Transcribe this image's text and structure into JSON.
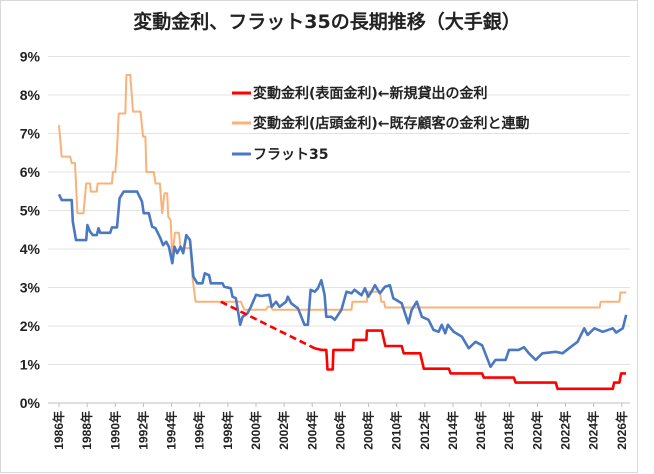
{
  "chart_data": {
    "type": "line",
    "title": "変動金利、フラット35の長期推移（大手銀）",
    "xlabel": "",
    "ylabel": "",
    "xlim": [
      1985.9,
      2026.4
    ],
    "ylim": [
      0,
      9
    ],
    "grid": true,
    "legend_placement": "top-center",
    "y_ticks": [
      "0%",
      "1%",
      "2%",
      "3%",
      "4%",
      "5%",
      "6%",
      "7%",
      "8%",
      "9%"
    ],
    "x_ticks": [
      "1986年",
      "1988年",
      "1990年",
      "1992年",
      "1994年",
      "1996年",
      "1998年",
      "2000年",
      "2002年",
      "2004年",
      "2006年",
      "2008年",
      "2010年",
      "2012年",
      "2014年",
      "2016年",
      "2018年",
      "2020年",
      "2022年",
      "2024年",
      "2026年"
    ],
    "series": [
      {
        "name": "変動金利(表面金利)←新規貸出の金利",
        "color": "#ff0000",
        "dashed_segment": [
          [
            1997.5,
            2.63
          ],
          [
            2004.17,
            1.42
          ]
        ],
        "points": [
          [
            2004.17,
            1.42
          ],
          [
            2004.64,
            1.38
          ],
          [
            2005.0,
            1.38
          ],
          [
            2005.08,
            0.87
          ],
          [
            2005.45,
            0.87
          ],
          [
            2005.5,
            1.38
          ],
          [
            2006.9,
            1.38
          ],
          [
            2006.93,
            1.64
          ],
          [
            2007.85,
            1.64
          ],
          [
            2007.88,
            1.88
          ],
          [
            2008.95,
            1.88
          ],
          [
            2009.19,
            1.48
          ],
          [
            2010.36,
            1.48
          ],
          [
            2010.5,
            1.29
          ],
          [
            2011.67,
            1.29
          ],
          [
            2011.93,
            0.89
          ],
          [
            2013.71,
            0.89
          ],
          [
            2013.83,
            0.77
          ],
          [
            2016.07,
            0.77
          ],
          [
            2016.19,
            0.66
          ],
          [
            2018.33,
            0.66
          ],
          [
            2018.45,
            0.53
          ],
          [
            2021.31,
            0.53
          ],
          [
            2021.43,
            0.37
          ],
          [
            2025.36,
            0.37
          ],
          [
            2025.45,
            0.53
          ],
          [
            2025.83,
            0.53
          ],
          [
            2025.95,
            0.77
          ],
          [
            2026.3,
            0.77
          ]
        ]
      },
      {
        "name": "変動金利(店頭金利)←既存顧客の金利と連動",
        "color": "#f8b27a",
        "points": [
          [
            1986.0,
            7.22
          ],
          [
            1986.19,
            6.4
          ],
          [
            1986.79,
            6.4
          ],
          [
            1986.9,
            6.23
          ],
          [
            1987.14,
            6.23
          ],
          [
            1987.31,
            4.93
          ],
          [
            1987.74,
            4.93
          ],
          [
            1987.93,
            5.7
          ],
          [
            1988.21,
            5.7
          ],
          [
            1988.26,
            5.49
          ],
          [
            1988.69,
            5.49
          ],
          [
            1988.74,
            5.7
          ],
          [
            1989.76,
            5.7
          ],
          [
            1989.83,
            6.0
          ],
          [
            1990.0,
            6.0
          ],
          [
            1990.12,
            6.57
          ],
          [
            1990.24,
            7.52
          ],
          [
            1990.71,
            7.52
          ],
          [
            1990.79,
            8.52
          ],
          [
            1991.07,
            8.52
          ],
          [
            1991.26,
            7.57
          ],
          [
            1991.79,
            7.57
          ],
          [
            1991.98,
            6.92
          ],
          [
            1992.14,
            6.92
          ],
          [
            1992.21,
            6.0
          ],
          [
            1992.74,
            6.0
          ],
          [
            1992.86,
            5.7
          ],
          [
            1993.17,
            5.7
          ],
          [
            1993.33,
            4.93
          ],
          [
            1993.5,
            5.45
          ],
          [
            1993.69,
            5.45
          ],
          [
            1993.76,
            4.84
          ],
          [
            1993.93,
            4.75
          ],
          [
            1994.05,
            3.8
          ],
          [
            1994.24,
            4.42
          ],
          [
            1994.52,
            4.42
          ],
          [
            1994.64,
            4.02
          ],
          [
            1995.36,
            4.02
          ],
          [
            1995.48,
            3.28
          ],
          [
            1995.71,
            2.63
          ],
          [
            1998.93,
            2.63
          ],
          [
            1999.17,
            2.42
          ],
          [
            2000.71,
            2.42
          ],
          [
            2000.83,
            2.5
          ],
          [
            2001.07,
            2.5
          ],
          [
            2001.19,
            2.42
          ],
          [
            2006.79,
            2.42
          ],
          [
            2006.85,
            2.63
          ],
          [
            2007.88,
            2.63
          ],
          [
            2007.95,
            2.89
          ],
          [
            2008.81,
            2.89
          ],
          [
            2008.9,
            2.63
          ],
          [
            2009.1,
            2.63
          ],
          [
            2009.19,
            2.48
          ],
          [
            2024.43,
            2.48
          ],
          [
            2024.5,
            2.63
          ],
          [
            2025.83,
            2.63
          ],
          [
            2025.9,
            2.87
          ],
          [
            2026.31,
            2.87
          ]
        ]
      },
      {
        "name": "フラット35",
        "color": "#4a78c2",
        "points": [
          [
            1986.0,
            5.42
          ],
          [
            1986.19,
            5.27
          ],
          [
            1986.9,
            5.27
          ],
          [
            1986.98,
            4.71
          ],
          [
            1987.21,
            4.23
          ],
          [
            1987.93,
            4.23
          ],
          [
            1988.02,
            4.62
          ],
          [
            1988.21,
            4.45
          ],
          [
            1988.4,
            4.36
          ],
          [
            1988.69,
            4.36
          ],
          [
            1988.81,
            4.54
          ],
          [
            1988.93,
            4.42
          ],
          [
            1989.64,
            4.42
          ],
          [
            1989.76,
            4.56
          ],
          [
            1990.12,
            4.56
          ],
          [
            1990.31,
            5.32
          ],
          [
            1990.6,
            5.49
          ],
          [
            1991.55,
            5.49
          ],
          [
            1991.9,
            5.23
          ],
          [
            1992.02,
            4.93
          ],
          [
            1992.38,
            4.93
          ],
          [
            1992.62,
            4.58
          ],
          [
            1992.86,
            4.54
          ],
          [
            1993.21,
            4.28
          ],
          [
            1993.4,
            4.1
          ],
          [
            1993.62,
            4.19
          ],
          [
            1993.81,
            4.06
          ],
          [
            1994.05,
            3.63
          ],
          [
            1994.21,
            4.06
          ],
          [
            1994.4,
            3.89
          ],
          [
            1994.64,
            4.06
          ],
          [
            1994.83,
            3.89
          ],
          [
            1995.05,
            4.36
          ],
          [
            1995.31,
            4.23
          ],
          [
            1995.55,
            3.28
          ],
          [
            1995.83,
            3.11
          ],
          [
            1996.19,
            3.11
          ],
          [
            1996.36,
            3.37
          ],
          [
            1996.67,
            3.32
          ],
          [
            1996.79,
            3.11
          ],
          [
            1997.62,
            3.11
          ],
          [
            1997.74,
            3.02
          ],
          [
            1998.21,
            2.98
          ],
          [
            1998.33,
            2.76
          ],
          [
            1998.57,
            2.72
          ],
          [
            1998.88,
            2.03
          ],
          [
            1999.05,
            2.24
          ],
          [
            1999.4,
            2.33
          ],
          [
            1999.64,
            2.5
          ],
          [
            2000.0,
            2.81
          ],
          [
            2000.36,
            2.78
          ],
          [
            2000.95,
            2.81
          ],
          [
            2001.12,
            2.5
          ],
          [
            2001.43,
            2.63
          ],
          [
            2001.67,
            2.5
          ],
          [
            2002.14,
            2.63
          ],
          [
            2002.26,
            2.76
          ],
          [
            2002.5,
            2.59
          ],
          [
            2002.98,
            2.46
          ],
          [
            2003.45,
            2.03
          ],
          [
            2003.69,
            2.03
          ],
          [
            2003.88,
            2.94
          ],
          [
            2004.17,
            2.89
          ],
          [
            2004.4,
            2.98
          ],
          [
            2004.64,
            3.19
          ],
          [
            2004.88,
            2.81
          ],
          [
            2005.0,
            2.24
          ],
          [
            2005.36,
            2.24
          ],
          [
            2005.6,
            2.16
          ],
          [
            2006.07,
            2.42
          ],
          [
            2006.43,
            2.89
          ],
          [
            2006.79,
            2.85
          ],
          [
            2007.0,
            2.94
          ],
          [
            2007.5,
            2.8
          ],
          [
            2007.74,
            2.98
          ],
          [
            2007.98,
            2.76
          ],
          [
            2008.21,
            2.89
          ],
          [
            2008.45,
            3.06
          ],
          [
            2008.81,
            2.85
          ],
          [
            2009.17,
            3.02
          ],
          [
            2009.52,
            3.06
          ],
          [
            2009.76,
            2.72
          ],
          [
            2010.36,
            2.59
          ],
          [
            2010.83,
            2.07
          ],
          [
            2011.07,
            2.42
          ],
          [
            2011.43,
            2.63
          ],
          [
            2011.79,
            2.24
          ],
          [
            2012.26,
            2.16
          ],
          [
            2012.62,
            1.9
          ],
          [
            2012.98,
            1.85
          ],
          [
            2013.21,
            2.03
          ],
          [
            2013.45,
            1.81
          ],
          [
            2013.64,
            2.03
          ],
          [
            2014.05,
            1.85
          ],
          [
            2014.64,
            1.72
          ],
          [
            2015.12,
            1.42
          ],
          [
            2015.6,
            1.59
          ],
          [
            2016.07,
            1.5
          ],
          [
            2016.43,
            1.16
          ],
          [
            2016.67,
            0.94
          ],
          [
            2017.02,
            1.12
          ],
          [
            2017.74,
            1.12
          ],
          [
            2017.98,
            1.38
          ],
          [
            2018.69,
            1.38
          ],
          [
            2019.05,
            1.45
          ],
          [
            2019.4,
            1.29
          ],
          [
            2019.88,
            1.12
          ],
          [
            2020.36,
            1.29
          ],
          [
            2021.31,
            1.33
          ],
          [
            2021.79,
            1.29
          ],
          [
            2022.38,
            1.46
          ],
          [
            2022.86,
            1.59
          ],
          [
            2023.33,
            1.94
          ],
          [
            2023.57,
            1.77
          ],
          [
            2024.05,
            1.94
          ],
          [
            2024.64,
            1.85
          ],
          [
            2025.36,
            1.94
          ],
          [
            2025.6,
            1.83
          ],
          [
            2026.07,
            1.94
          ],
          [
            2026.31,
            2.29
          ]
        ]
      }
    ]
  }
}
